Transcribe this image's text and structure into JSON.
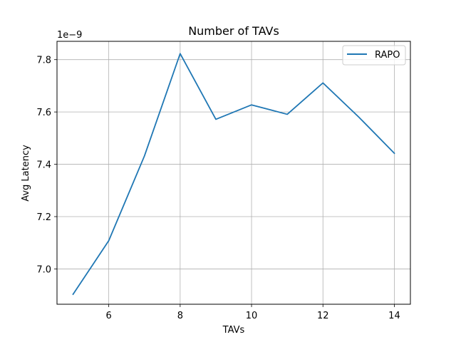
{
  "chart_data": {
    "type": "line",
    "title": "Number of TAVs",
    "xlabel": "TAVs",
    "ylabel": "Avg Latency",
    "y_offset_label": "1e−9",
    "xlim": [
      4.55,
      14.45
    ],
    "ylim": [
      6.865,
      7.87
    ],
    "xticks": [
      6,
      8,
      10,
      12,
      14
    ],
    "xtick_labels": [
      "6",
      "8",
      "10",
      "12",
      "14"
    ],
    "yticks": [
      7.0,
      7.2,
      7.4,
      7.6,
      7.8
    ],
    "ytick_labels": [
      "7.0",
      "7.2",
      "7.4",
      "7.6",
      "7.8"
    ],
    "grid": true,
    "legend_position": "top-right",
    "series": [
      {
        "name": "RAPO",
        "color": "#1f77b4",
        "x": [
          5,
          6,
          7,
          8,
          9,
          10,
          11,
          12,
          13,
          14
        ],
        "y": [
          6.903,
          7.108,
          7.432,
          7.823,
          7.572,
          7.627,
          7.591,
          7.711,
          7.581,
          7.442
        ]
      }
    ]
  }
}
